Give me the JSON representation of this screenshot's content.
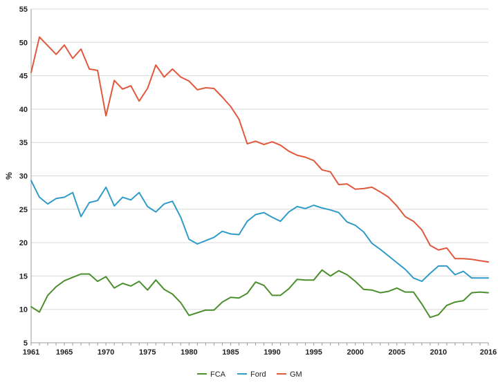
{
  "chart_data": {
    "type": "line",
    "title": "",
    "xlabel": "",
    "ylabel": "%",
    "xlim": [
      1961,
      2016
    ],
    "ylim": [
      5,
      55
    ],
    "y_ticks": [
      5,
      10,
      15,
      20,
      25,
      30,
      35,
      40,
      45,
      50,
      55
    ],
    "x_ticks": [
      1961,
      1965,
      1970,
      1975,
      1980,
      1985,
      1990,
      1995,
      2000,
      2005,
      2010,
      2016
    ],
    "x_tick_labels": [
      "1961",
      "1965",
      "1970",
      "1975",
      "1980",
      "1985",
      "1990",
      "1995",
      "2000",
      "2005",
      "2010",
      "2016"
    ],
    "grid": "horizontal",
    "legend_position": "bottom-center",
    "x": [
      1961,
      1962,
      1963,
      1964,
      1965,
      1966,
      1967,
      1968,
      1969,
      1970,
      1971,
      1972,
      1973,
      1974,
      1975,
      1976,
      1977,
      1978,
      1979,
      1980,
      1981,
      1982,
      1983,
      1984,
      1985,
      1986,
      1987,
      1988,
      1989,
      1990,
      1991,
      1992,
      1993,
      1994,
      1995,
      1996,
      1997,
      1998,
      1999,
      2000,
      2001,
      2002,
      2003,
      2004,
      2005,
      2006,
      2007,
      2008,
      2009,
      2010,
      2011,
      2012,
      2013,
      2014,
      2015,
      2016
    ],
    "series": [
      {
        "name": "FCA",
        "color": "#4a8f2c",
        "values": [
          10.4,
          9.6,
          12.1,
          13.4,
          14.3,
          14.8,
          15.3,
          15.3,
          14.2,
          14.9,
          13.2,
          13.9,
          13.5,
          14.2,
          12.9,
          14.4,
          13.0,
          12.3,
          11.0,
          9.1,
          9.5,
          9.9,
          9.9,
          11.1,
          11.8,
          11.7,
          12.4,
          14.1,
          13.6,
          12.1,
          12.1,
          13.1,
          14.5,
          14.4,
          14.4,
          15.9,
          15.0,
          15.8,
          15.2,
          14.2,
          13.0,
          12.9,
          12.5,
          12.7,
          13.2,
          12.6,
          12.6,
          10.8,
          8.8,
          9.2,
          10.6,
          11.1,
          11.3,
          12.5,
          12.6,
          12.5
        ]
      },
      {
        "name": "Ford",
        "color": "#2f9bc8",
        "values": [
          29.3,
          26.8,
          25.8,
          26.6,
          26.8,
          27.5,
          23.9,
          26.0,
          26.3,
          28.3,
          25.5,
          26.8,
          26.4,
          27.5,
          25.4,
          24.6,
          25.8,
          26.2,
          23.8,
          20.5,
          19.8,
          20.3,
          20.8,
          21.7,
          21.3,
          21.2,
          23.2,
          24.2,
          24.5,
          23.8,
          23.2,
          24.6,
          25.4,
          25.1,
          25.6,
          25.2,
          24.9,
          24.5,
          23.1,
          22.6,
          21.6,
          19.9,
          19.0,
          18.0,
          17.0,
          16.0,
          14.7,
          14.2,
          15.4,
          16.5,
          16.5,
          15.2,
          15.7,
          14.7,
          14.7,
          14.7
        ]
      },
      {
        "name": "GM",
        "color": "#e0573b",
        "values": [
          45.5,
          50.8,
          49.5,
          48.2,
          49.6,
          47.6,
          49.0,
          46.0,
          45.8,
          39.0,
          44.3,
          43.0,
          43.5,
          41.2,
          43.1,
          46.6,
          44.8,
          46.0,
          44.8,
          44.2,
          42.9,
          43.2,
          43.1,
          41.8,
          40.4,
          38.5,
          34.8,
          35.2,
          34.7,
          35.1,
          34.6,
          33.7,
          33.1,
          32.8,
          32.3,
          30.9,
          30.6,
          28.7,
          28.8,
          28.0,
          28.1,
          28.3,
          27.6,
          26.8,
          25.5,
          23.9,
          23.2,
          21.9,
          19.6,
          18.9,
          19.2,
          17.6,
          17.6,
          17.5,
          17.3,
          17.1
        ]
      }
    ]
  }
}
